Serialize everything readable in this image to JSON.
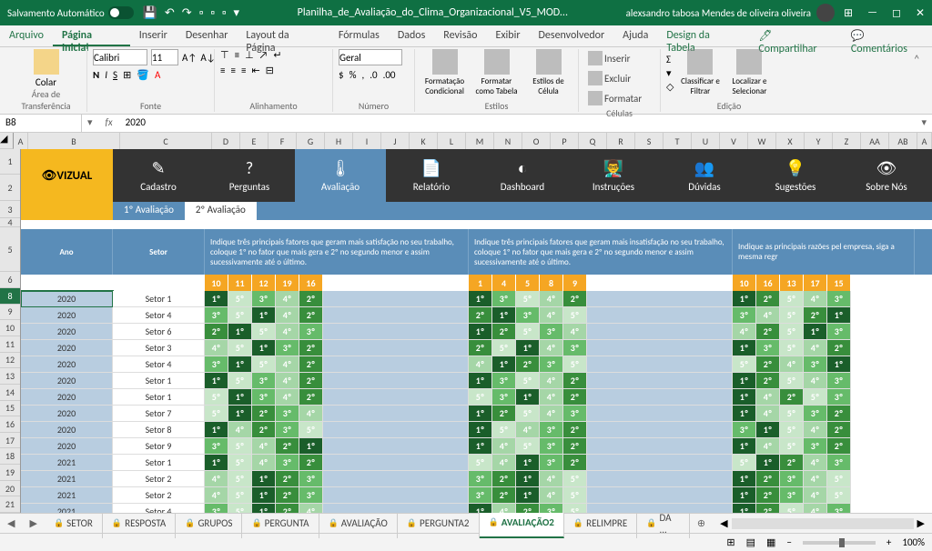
{
  "titlebar": {
    "auto_save": "Salvamento Automático",
    "filename": "Planilha_de_Avaliação_do_Clima_Organizacional_V5_MOD...",
    "user": "alexsandro tabosa Mendes de oliveira oliveira"
  },
  "ribbon_tabs": [
    "Arquivo",
    "Página Inicial",
    "Inserir",
    "Desenhar",
    "Layout da Página",
    "Fórmulas",
    "Dados",
    "Revisão",
    "Exibir",
    "Desenvolvedor",
    "Ajuda",
    "Design da Tabela"
  ],
  "share": "Compartilhar",
  "comments": "Comentários",
  "ribbon": {
    "paste": "Colar",
    "clipboard": "Área de Transferência",
    "font_name": "Calibri",
    "font_size": "11",
    "font": "Fonte",
    "alignment": "Alinhamento",
    "number": "Número",
    "number_format": "Geral",
    "cond_format": "Formatação Condicional",
    "format_table": "Formatar como Tabela",
    "cell_styles": "Estilos de Célula",
    "styles": "Estilos",
    "insert": "Inserir",
    "delete": "Excluir",
    "format": "Formatar",
    "cells": "Células",
    "sort_filter": "Classificar e Filtrar",
    "find_select": "Localizar e Selecionar",
    "editing": "Edição"
  },
  "name_box": {
    "ref": "B8",
    "formula": "2020"
  },
  "cols": [
    "A",
    "B",
    "C",
    "D",
    "E",
    "F",
    "G",
    "H",
    "I",
    "J",
    "K",
    "L",
    "M",
    "N",
    "O",
    "P",
    "Q",
    "R",
    "S",
    "T",
    "U",
    "V",
    "W",
    "X",
    "Y",
    "Z",
    "AA",
    "AB",
    "A"
  ],
  "rows": [
    "1",
    "2",
    "3",
    "4",
    "5",
    "6",
    "8",
    "9",
    "10",
    "11",
    "12",
    "13",
    "14",
    "15",
    "16",
    "17",
    "18",
    "19",
    "20",
    "21"
  ],
  "nav": [
    "Cadastro",
    "Perguntas",
    "Avaliação",
    "Relatório",
    "Dashboard",
    "Instruções",
    "Dúvidas",
    "Sugestões",
    "Sobre Nós"
  ],
  "nav_icons": [
    "✎",
    "?",
    "🌡",
    "📄",
    "◐",
    "👨‍🏫",
    "👥",
    "💡",
    "👁"
  ],
  "logo": "VIZUAL",
  "sub_tabs": [
    "1º Avaliação",
    "2º Avaliação"
  ],
  "headers": {
    "ano": "Ano",
    "setor": "Setor",
    "q1": "Indique três principais fatores que geram mais satisfação no seu trabalho, coloque 1º no fator que mais gera e 2º no segundo menor e assim sucessivamente até o último.",
    "q2": "Indique três principais fatores que geram mais insatisfação no seu trabalho, coloque 1º no fator que mais gera e 2º no segundo menor e assim sucessivamente até o último.",
    "q3": "Indique as principais razões pel empresa, siga a mesma regr"
  },
  "num_headers": {
    "g1": [
      "10",
      "11",
      "12",
      "19",
      "16"
    ],
    "g2": [
      "1",
      "4",
      "5",
      "8",
      "9"
    ],
    "g3": [
      "10",
      "16",
      "13",
      "17",
      "15"
    ]
  },
  "data_rows": [
    {
      "ano": "2020",
      "setor": "Setor 1",
      "g1": [
        "1º",
        "5º",
        "3º",
        "4º",
        "2º"
      ],
      "g2": [
        "1º",
        "3º",
        "5º",
        "4º",
        "2º"
      ],
      "g3": [
        "1º",
        "2º",
        "5º",
        "4º",
        "3º"
      ]
    },
    {
      "ano": "2020",
      "setor": "Setor 4",
      "g1": [
        "3º",
        "5º",
        "1º",
        "4º",
        "2º"
      ],
      "g2": [
        "2º",
        "1º",
        "3º",
        "4º",
        "5º"
      ],
      "g3": [
        "3º",
        "4º",
        "5º",
        "2º",
        "1º"
      ]
    },
    {
      "ano": "2020",
      "setor": "Setor 6",
      "g1": [
        "2º",
        "1º",
        "5º",
        "4º",
        "3º"
      ],
      "g2": [
        "1º",
        "2º",
        "5º",
        "3º",
        "4º"
      ],
      "g3": [
        "4º",
        "2º",
        "5º",
        "1º",
        "3º"
      ]
    },
    {
      "ano": "2020",
      "setor": "Setor 3",
      "g1": [
        "4º",
        "5º",
        "1º",
        "3º",
        "2º"
      ],
      "g2": [
        "2º",
        "5º",
        "1º",
        "4º",
        "3º"
      ],
      "g3": [
        "1º",
        "3º",
        "5º",
        "4º",
        "2º"
      ]
    },
    {
      "ano": "2020",
      "setor": "Setor 4",
      "g1": [
        "3º",
        "1º",
        "5º",
        "4º",
        "2º"
      ],
      "g2": [
        "4º",
        "1º",
        "2º",
        "3º",
        "5º"
      ],
      "g3": [
        "5º",
        "2º",
        "4º",
        "3º",
        "1º"
      ]
    },
    {
      "ano": "2020",
      "setor": "Setor 1",
      "g1": [
        "1º",
        "5º",
        "3º",
        "4º",
        "2º"
      ],
      "g2": [
        "1º",
        "3º",
        "5º",
        "4º",
        "2º"
      ],
      "g3": [
        "1º",
        "2º",
        "5º",
        "4º",
        "3º"
      ]
    },
    {
      "ano": "2020",
      "setor": "Setor 1",
      "g1": [
        "5º",
        "1º",
        "3º",
        "4º",
        "2º"
      ],
      "g2": [
        "5º",
        "3º",
        "1º",
        "4º",
        "2º"
      ],
      "g3": [
        "1º",
        "4º",
        "2º",
        "5º",
        "3º"
      ]
    },
    {
      "ano": "2020",
      "setor": "Setor 7",
      "g1": [
        "5º",
        "1º",
        "2º",
        "3º",
        "4º"
      ],
      "g2": [
        "1º",
        "2º",
        "5º",
        "4º",
        "3º"
      ],
      "g3": [
        "1º",
        "4º",
        "5º",
        "3º",
        "2º"
      ]
    },
    {
      "ano": "2020",
      "setor": "Setor 8",
      "g1": [
        "1º",
        "4º",
        "2º",
        "3º",
        "5º"
      ],
      "g2": [
        "1º",
        "5º",
        "4º",
        "3º",
        "2º"
      ],
      "g3": [
        "3º",
        "1º",
        "5º",
        "4º",
        "2º"
      ]
    },
    {
      "ano": "2020",
      "setor": "Setor 9",
      "g1": [
        "3º",
        "5º",
        "4º",
        "2º",
        "1º"
      ],
      "g2": [
        "1º",
        "4º",
        "5º",
        "3º",
        "2º"
      ],
      "g3": [
        "1º",
        "4º",
        "5º",
        "3º",
        "2º"
      ]
    },
    {
      "ano": "2021",
      "setor": "Setor 1",
      "g1": [
        "1º",
        "5º",
        "4º",
        "3º",
        "2º"
      ],
      "g2": [
        "5º",
        "4º",
        "1º",
        "3º",
        "2º"
      ],
      "g3": [
        "5º",
        "1º",
        "2º",
        "4º",
        "3º"
      ]
    },
    {
      "ano": "2021",
      "setor": "Setor 2",
      "g1": [
        "4º",
        "5º",
        "1º",
        "2º",
        "3º"
      ],
      "g2": [
        "3º",
        "2º",
        "1º",
        "4º",
        "5º"
      ],
      "g3": [
        "1º",
        "2º",
        "3º",
        "4º",
        "5º"
      ]
    },
    {
      "ano": "2021",
      "setor": "Setor 2",
      "g1": [
        "4º",
        "5º",
        "1º",
        "2º",
        "3º"
      ],
      "g2": [
        "3º",
        "2º",
        "1º",
        "4º",
        "5º"
      ],
      "g3": [
        "1º",
        "2º",
        "3º",
        "4º",
        "5º"
      ]
    },
    {
      "ano": "2021",
      "setor": "Setor 4",
      "g1": [
        "3º",
        "5º",
        "1º",
        "2º",
        "4º"
      ],
      "g2": [
        "1º",
        "4º",
        "2º",
        "3º",
        "5º"
      ],
      "g3": [
        "1º",
        "2º",
        "5º",
        "4º",
        "3º"
      ]
    }
  ],
  "sheets": [
    "SETOR",
    "RESPOSTA",
    "GRUPOS",
    "PERGUNTA",
    "AVALIAÇÃO",
    "PERGUNTA2",
    "AVALIAÇÃO2",
    "RELIMPRE",
    "DA ..."
  ],
  "zoom": "100%"
}
